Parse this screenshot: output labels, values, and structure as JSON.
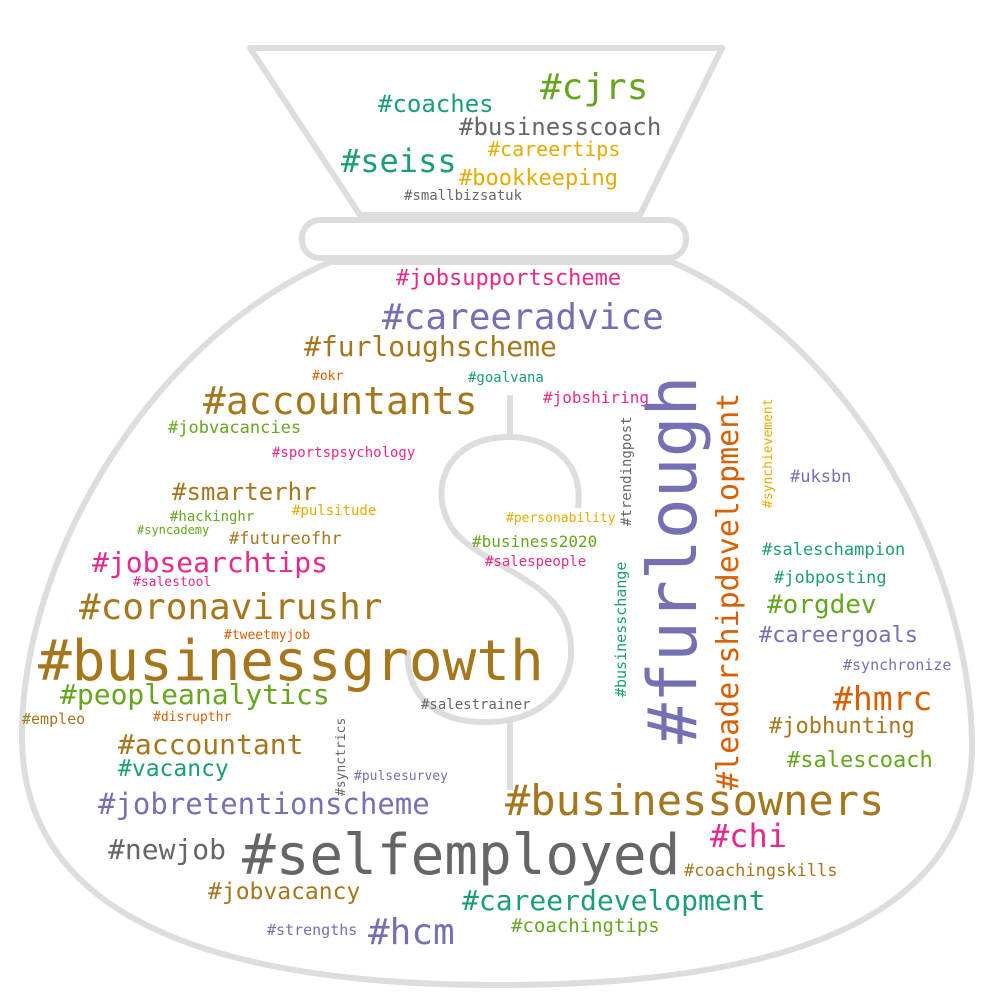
{
  "colors": {
    "green": "#66a61e",
    "teal": "#1b9e77",
    "gray": "#666666",
    "gold": "#e6ab02",
    "purple": "#7570b3",
    "magenta": "#e7298a",
    "brown": "#a6761d",
    "orange": "#d95f02",
    "outline": "#dddddd"
  },
  "words": [
    {
      "text": "#cjrs",
      "color": "#66a61e"
    },
    {
      "text": "#coaches",
      "color": "#1b9e77"
    },
    {
      "text": "#businesscoach",
      "color": "#666666"
    },
    {
      "text": "#seiss",
      "color": "#1b9e77"
    },
    {
      "text": "#careertips",
      "color": "#e6ab02"
    },
    {
      "text": "#bookkeeping",
      "color": "#e6ab02"
    },
    {
      "text": "#smallbizsatuk",
      "color": "#666666"
    },
    {
      "text": "#jobsupportscheme",
      "color": "#e7298a"
    },
    {
      "text": "#careeradvice",
      "color": "#7570b3"
    },
    {
      "text": "#furloughscheme",
      "color": "#a6761d"
    },
    {
      "text": "#okr",
      "color": "#d95f02"
    },
    {
      "text": "#goalvana",
      "color": "#1b9e77"
    },
    {
      "text": "#accountants",
      "color": "#a6761d"
    },
    {
      "text": "#jobshiring",
      "color": "#e7298a"
    },
    {
      "text": "#jobvacancies",
      "color": "#66a61e"
    },
    {
      "text": "#sportspsychology",
      "color": "#e7298a"
    },
    {
      "text": "#smarterhr",
      "color": "#a6761d"
    },
    {
      "text": "#hackinghr",
      "color": "#66a61e"
    },
    {
      "text": "#pulsitude",
      "color": "#e6ab02"
    },
    {
      "text": "#syncademy",
      "color": "#66a61e"
    },
    {
      "text": "#personability",
      "color": "#e6ab02"
    },
    {
      "text": "#futureofhr",
      "color": "#a6761d"
    },
    {
      "text": "#business2020",
      "color": "#66a61e"
    },
    {
      "text": "#jobsearchtips",
      "color": "#e7298a"
    },
    {
      "text": "#salespeople",
      "color": "#e7298a"
    },
    {
      "text": "#salestool",
      "color": "#e7298a"
    },
    {
      "text": "#coronavirushr",
      "color": "#a6761d"
    },
    {
      "text": "#tweetmyjob",
      "color": "#d95f02"
    },
    {
      "text": "#businessgrowth",
      "color": "#a6761d"
    },
    {
      "text": "#peopleanalytics",
      "color": "#66a61e"
    },
    {
      "text": "#empleo",
      "color": "#a6761d"
    },
    {
      "text": "#disrupthr",
      "color": "#d95f02"
    },
    {
      "text": "#salestrainer",
      "color": "#666666"
    },
    {
      "text": "#accountant",
      "color": "#a6761d"
    },
    {
      "text": "#vacancy",
      "color": "#1b9e77"
    },
    {
      "text": "#pulsesurvey",
      "color": "#7570b3"
    },
    {
      "text": "#jobretentionscheme",
      "color": "#7570b3"
    },
    {
      "text": "#businessowners",
      "color": "#a6761d"
    },
    {
      "text": "#newjob",
      "color": "#666666"
    },
    {
      "text": "#selfemployed",
      "color": "#666666"
    },
    {
      "text": "#chi",
      "color": "#e7298a"
    },
    {
      "text": "#coachingskills",
      "color": "#a6761d"
    },
    {
      "text": "#jobvacancy",
      "color": "#a6761d"
    },
    {
      "text": "#careerdevelopment",
      "color": "#1b9e77"
    },
    {
      "text": "#strengths",
      "color": "#7570b3"
    },
    {
      "text": "#hcm",
      "color": "#7570b3"
    },
    {
      "text": "#coachingtips",
      "color": "#66a61e"
    },
    {
      "text": "#uksbn",
      "color": "#7570b3"
    },
    {
      "text": "#saleschampion",
      "color": "#1b9e77"
    },
    {
      "text": "#jobposting",
      "color": "#1b9e77"
    },
    {
      "text": "#orgdev",
      "color": "#66a61e"
    },
    {
      "text": "#careergoals",
      "color": "#7570b3"
    },
    {
      "text": "#synchronize",
      "color": "#7570b3"
    },
    {
      "text": "#hmrc",
      "color": "#d95f02"
    },
    {
      "text": "#jobhunting",
      "color": "#a6761d"
    },
    {
      "text": "#salescoach",
      "color": "#66a61e"
    },
    {
      "text": "#furlough",
      "color": "#7570b3"
    },
    {
      "text": "#leadershipdevelopment",
      "color": "#d95f02"
    },
    {
      "text": "#synchievement",
      "color": "#e6ab02"
    },
    {
      "text": "#trendingpost",
      "color": "#666666"
    },
    {
      "text": "#businesschange",
      "color": "#1b9e77"
    },
    {
      "text": "#synctrics",
      "color": "#666666"
    }
  ]
}
